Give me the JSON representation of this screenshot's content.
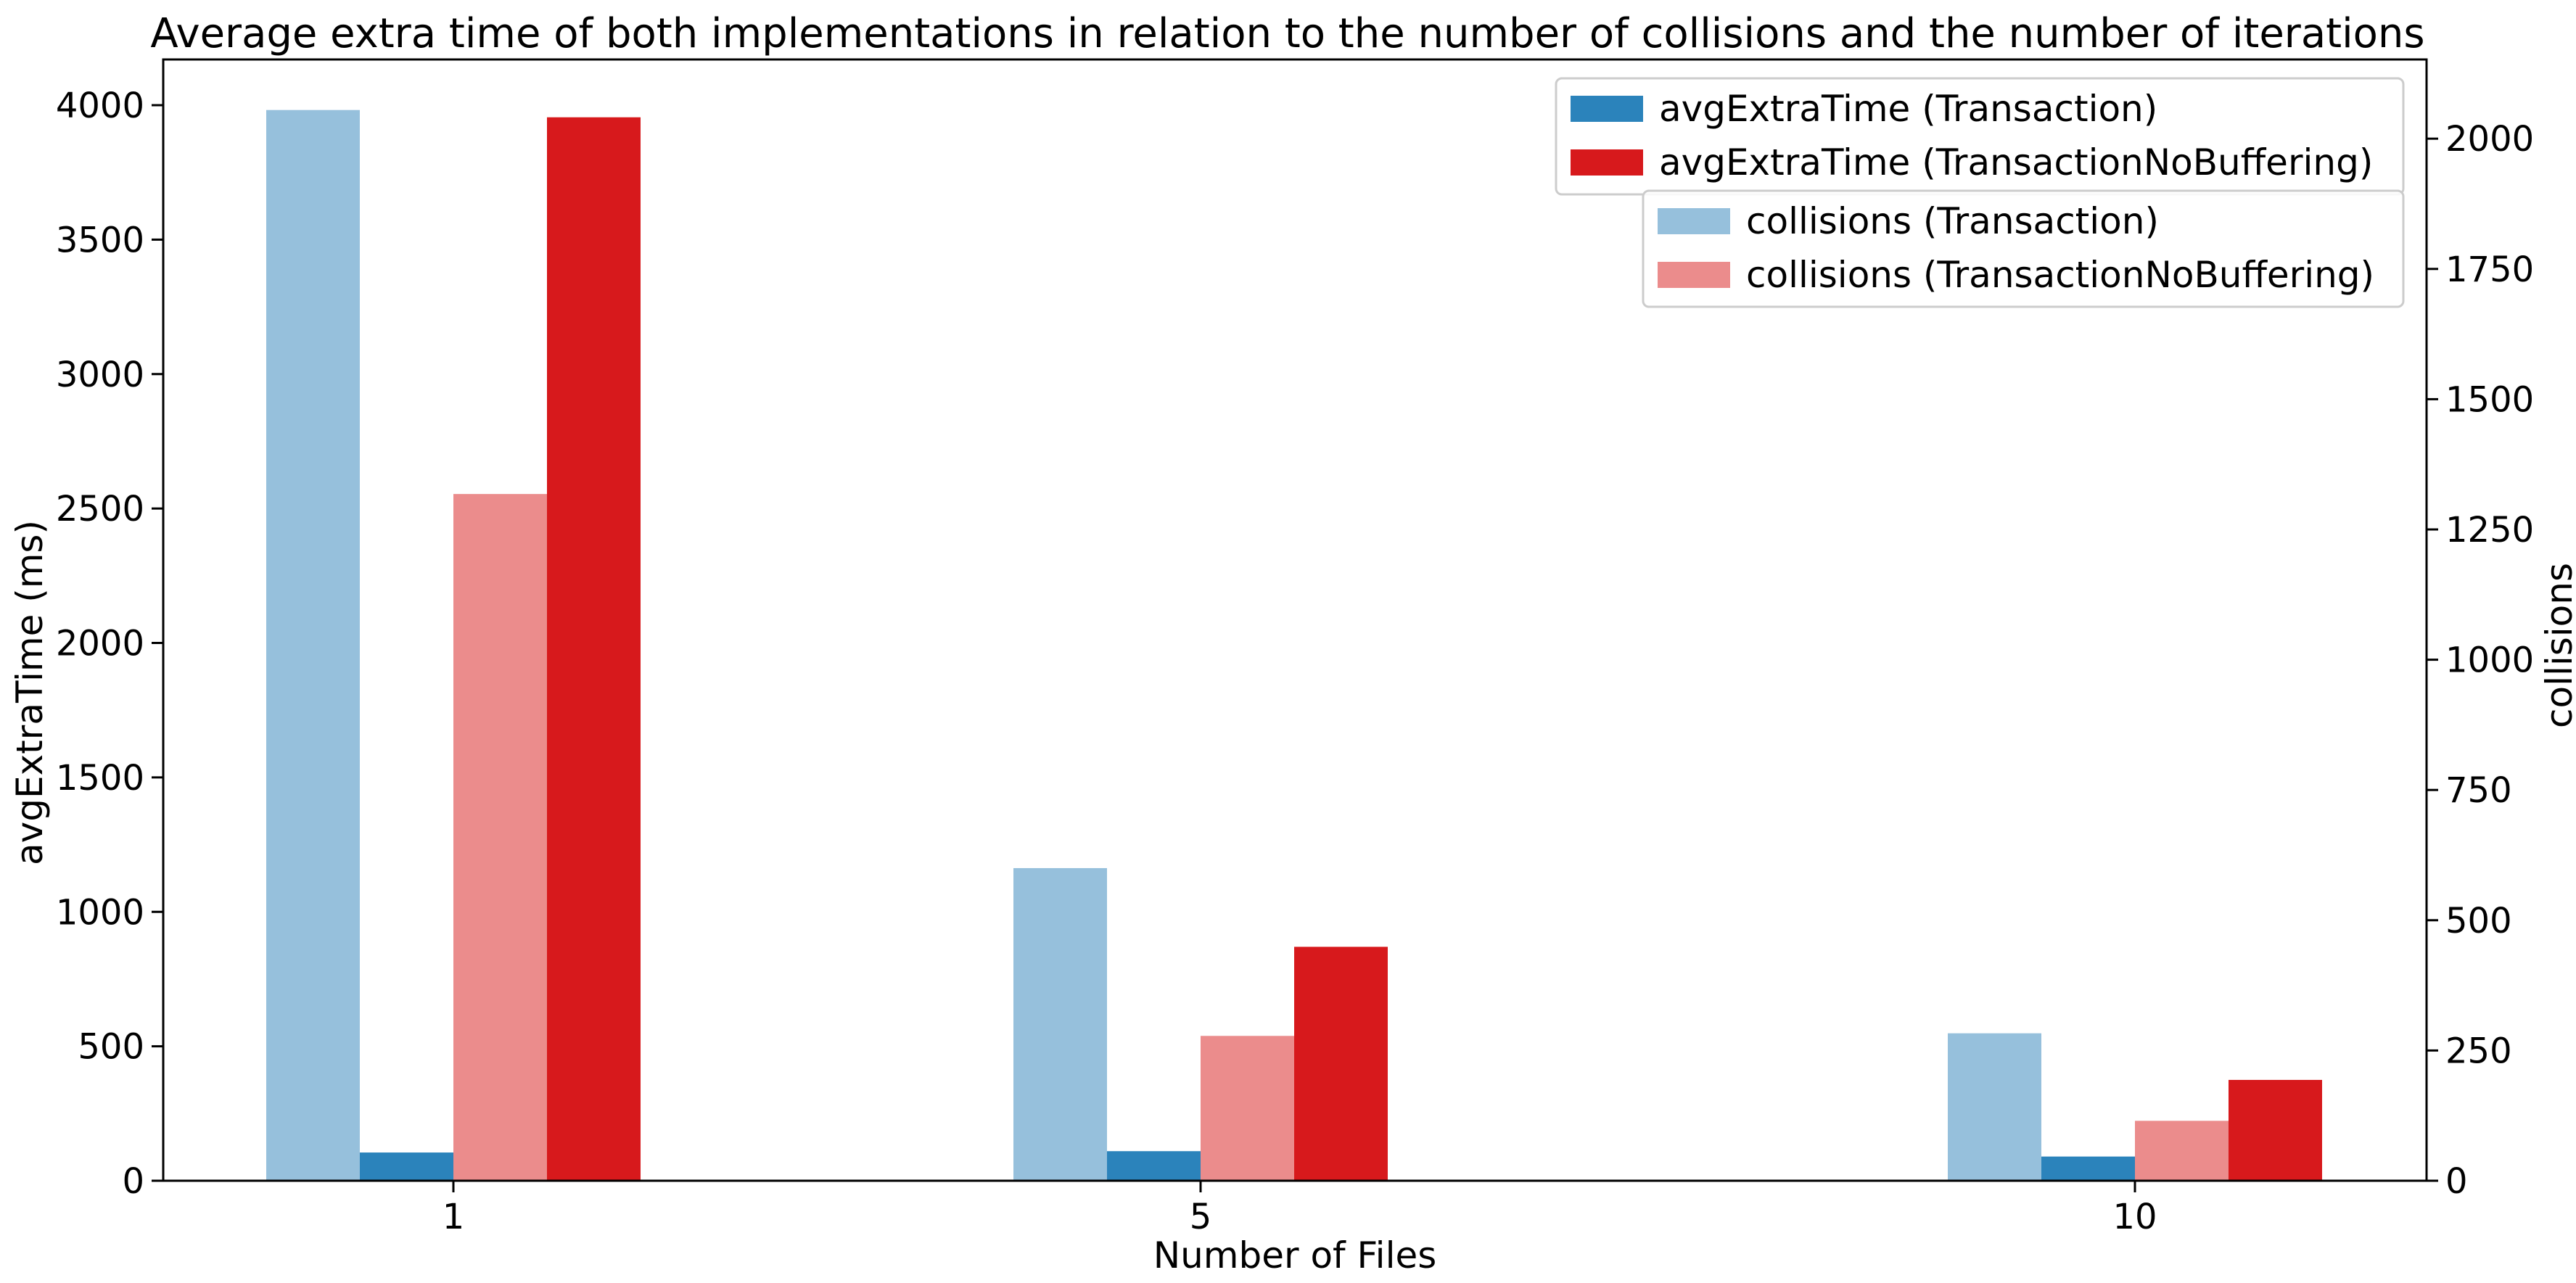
{
  "chart_data": {
    "type": "bar",
    "title": "Average extra time of both implementations in relation to the number of collisions and the number of iterations",
    "xlabel": "Number of Files",
    "ylabel": "avgExtraTime (ms)",
    "y2label": "collisions",
    "categories": [
      "1",
      "5",
      "10"
    ],
    "ylim": [
      0,
      4170
    ],
    "y2lim": [
      0,
      2152
    ],
    "yticks": [
      0,
      500,
      1000,
      1500,
      2000,
      2500,
      3000,
      3500,
      4000
    ],
    "y2ticks": [
      0,
      250,
      500,
      750,
      1000,
      1250,
      1500,
      1750,
      2000
    ],
    "legend_primary_position": "top-right",
    "legend_secondary_position": "top-right, below primary legend",
    "grid": false,
    "series": [
      {
        "name": "collisions (Transaction)",
        "axis": "right",
        "color": "#96c0dc",
        "values": [
          2055,
          600,
          283
        ]
      },
      {
        "name": "avgExtraTime (Transaction)",
        "axis": "left",
        "color": "#2b83bb",
        "values": [
          105,
          110,
          90
        ]
      },
      {
        "name": "collisions (TransactionNoBuffering)",
        "axis": "right",
        "color": "#eb8c8c",
        "values": [
          1318,
          278,
          115
        ]
      },
      {
        "name": "avgExtraTime (TransactionNoBuffering)",
        "axis": "left",
        "color": "#d7191c",
        "values": [
          3955,
          870,
          375
        ]
      }
    ]
  }
}
